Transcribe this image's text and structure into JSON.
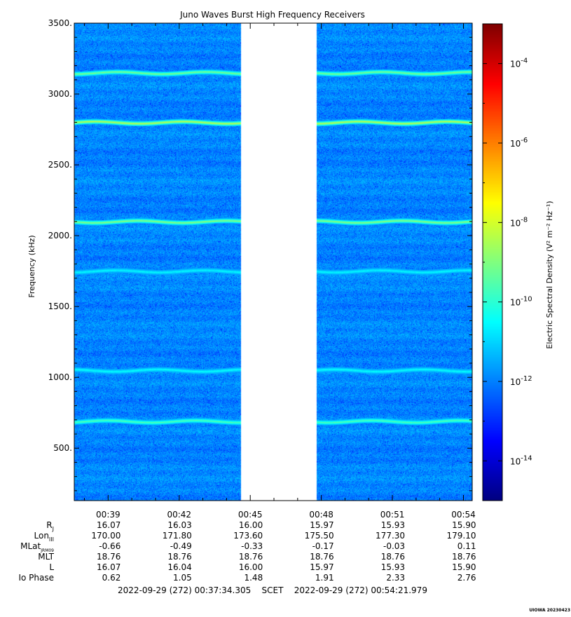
{
  "chart_data": {
    "type": "heatmap",
    "title": "Juno Waves Burst High Frequency Receivers",
    "ylabel": "Frequency (kHz)",
    "ylim": [
      130,
      3500
    ],
    "y_ticks": [
      {
        "value": 500,
        "label": "500."
      },
      {
        "value": 1000,
        "label": "1000."
      },
      {
        "value": 1500,
        "label": "1500."
      },
      {
        "value": 2000,
        "label": "2000."
      },
      {
        "value": 2500,
        "label": "2500."
      },
      {
        "value": 3000,
        "label": "3000."
      },
      {
        "value": 3500,
        "label": "3500."
      }
    ],
    "x_range_minutes": [
      37.57,
      54.37
    ],
    "x_ticks": [
      {
        "value": 39,
        "label": "00:39"
      },
      {
        "value": 42,
        "label": "00:42"
      },
      {
        "value": 45,
        "label": "00:45"
      },
      {
        "value": 48,
        "label": "00:48"
      },
      {
        "value": 51,
        "label": "00:51"
      },
      {
        "value": 54,
        "label": "00:54"
      }
    ],
    "data_gap_minutes": [
      44.6,
      47.8
    ],
    "background_log_density": -11.9,
    "emission_lines": [
      {
        "freq_khz": 3150,
        "log_density": -9.0
      },
      {
        "freq_khz": 2800,
        "log_density": -8.2
      },
      {
        "freq_khz": 2100,
        "log_density": -8.8
      },
      {
        "freq_khz": 1750,
        "log_density": -10.5
      },
      {
        "freq_khz": 1050,
        "log_density": -10.4
      },
      {
        "freq_khz": 690,
        "log_density": -9.5
      }
    ],
    "colorbar": {
      "label": "Electric Spectral Density (V² m⁻² Hz⁻¹)",
      "range_log10": [
        -15,
        -3
      ],
      "ticks": [
        {
          "exp": -4,
          "label": "10",
          "sup": "-4"
        },
        {
          "exp": -6,
          "label": "10",
          "sup": "-6"
        },
        {
          "exp": -8,
          "label": "10",
          "sup": "-8"
        },
        {
          "exp": -10,
          "label": "10",
          "sup": "-10"
        },
        {
          "exp": -12,
          "label": "10",
          "sup": "-12"
        },
        {
          "exp": -14,
          "label": "10",
          "sup": "-14"
        }
      ]
    },
    "ephemeris": {
      "rows": [
        {
          "label": "R",
          "sub": "J",
          "values": [
            "16.07",
            "16.03",
            "16.00",
            "15.97",
            "15.93",
            "15.90"
          ]
        },
        {
          "label": "Lon",
          "sub": "III",
          "values": [
            "170.00",
            "171.80",
            "173.60",
            "175.50",
            "177.30",
            "179.10"
          ]
        },
        {
          "label": "MLat",
          "sub": "JRM09",
          "values": [
            "-0.66",
            "-0.49",
            "-0.33",
            "-0.17",
            "-0.03",
            "0.11"
          ]
        },
        {
          "label": "MLT",
          "sub": "",
          "values": [
            "18.76",
            "18.76",
            "18.76",
            "18.76",
            "18.76",
            "18.76"
          ]
        },
        {
          "label": "L",
          "sub": "",
          "values": [
            "16.07",
            "16.04",
            "16.00",
            "15.97",
            "15.93",
            "15.90"
          ]
        },
        {
          "label": "Io Phase",
          "sub": "",
          "values": [
            "0.62",
            "1.05",
            "1.48",
            "1.91",
            "2.33",
            "2.76"
          ]
        }
      ]
    },
    "time_range_text": "2022-09-29 (272) 00:37:34.305    SCET    2022-09-29 (272) 00:54:21.979",
    "credit": "UIOWA 20230423"
  }
}
